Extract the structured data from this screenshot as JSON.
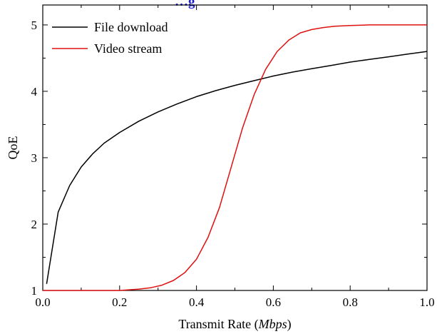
{
  "chart_data": {
    "type": "line",
    "title": "…g",
    "title_color": "#1a1ad6",
    "xlabel_prefix": "Transmit Rate (",
    "xlabel_unit": "Mbps",
    "xlabel_suffix": ")",
    "ylabel": "QoE",
    "xlim": [
      0.0,
      1.0
    ],
    "ylim": [
      1,
      5.3
    ],
    "xticks": [
      "0.0",
      "0.2",
      "0.4",
      "0.6",
      "0.8",
      "1.0"
    ],
    "xtick_values": [
      0.0,
      0.2,
      0.4,
      0.6,
      0.8,
      1.0
    ],
    "yticks": [
      "1",
      "2",
      "3",
      "4",
      "5"
    ],
    "ytick_values": [
      1,
      2,
      3,
      4,
      5
    ],
    "grid": false,
    "legend_position": "top-left",
    "series": [
      {
        "name": "File download",
        "color": "#000000",
        "x": [
          0.01,
          0.04,
          0.07,
          0.1,
          0.13,
          0.16,
          0.2,
          0.25,
          0.3,
          0.35,
          0.4,
          0.45,
          0.5,
          0.55,
          0.6,
          0.65,
          0.7,
          0.75,
          0.8,
          0.85,
          0.9,
          0.95,
          1.0
        ],
        "y": [
          1.1,
          2.18,
          2.58,
          2.86,
          3.06,
          3.22,
          3.38,
          3.55,
          3.69,
          3.81,
          3.92,
          4.01,
          4.09,
          4.16,
          4.23,
          4.29,
          4.34,
          4.39,
          4.44,
          4.48,
          4.52,
          4.56,
          4.6
        ]
      },
      {
        "name": "Video stream",
        "color": "#e01010",
        "x": [
          0.0,
          0.05,
          0.1,
          0.15,
          0.2,
          0.25,
          0.28,
          0.31,
          0.34,
          0.37,
          0.4,
          0.43,
          0.46,
          0.49,
          0.52,
          0.55,
          0.58,
          0.61,
          0.64,
          0.67,
          0.7,
          0.73,
          0.76,
          0.8,
          0.85,
          0.9,
          0.95,
          1.0
        ],
        "y": [
          1.0,
          1.0,
          1.0,
          1.0,
          1.0,
          1.02,
          1.04,
          1.08,
          1.15,
          1.27,
          1.47,
          1.8,
          2.25,
          2.85,
          3.45,
          3.95,
          4.33,
          4.6,
          4.77,
          4.88,
          4.93,
          4.96,
          4.98,
          4.99,
          5.0,
          5.0,
          5.0,
          5.0
        ]
      }
    ]
  }
}
